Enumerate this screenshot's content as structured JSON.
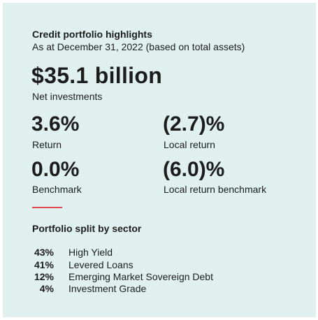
{
  "header": {
    "title": "Credit portfolio highlights",
    "subtitle": "As at December 31, 2022 (based on total assets)"
  },
  "headline": {
    "value": "$35.1 billion",
    "label": "Net investments"
  },
  "metrics": [
    {
      "value": "3.6%",
      "label": "Return"
    },
    {
      "value": "(2.7)%",
      "label": "Local return"
    },
    {
      "value": "0.0%",
      "label": "Benchmark"
    },
    {
      "value": "(6.0)%",
      "label": "Local return benchmark"
    }
  ],
  "split": {
    "title": "Portfolio split by sector",
    "rows": [
      {
        "share": "43%",
        "sector": "High Yield"
      },
      {
        "share": "41%",
        "sector": "Levered Loans"
      },
      {
        "share": "12%",
        "sector": "Emerging Market Sovereign Debt"
      },
      {
        "share": "4%",
        "sector": "Investment Grade"
      }
    ]
  }
}
